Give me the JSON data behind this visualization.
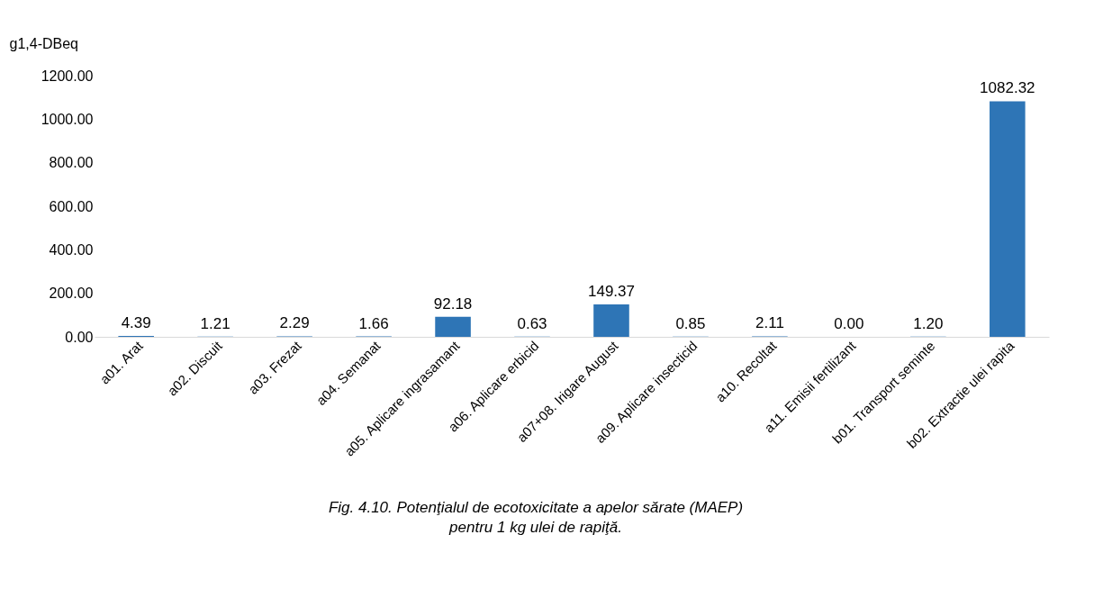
{
  "chart_data": {
    "type": "bar",
    "ylabel": "g1,4-DBeq",
    "categories": [
      "a01. Arat",
      "a02. Discuit",
      "a03. Frezat",
      "a04. Semanat",
      "a05. Aplicare ingrasamant",
      "a06. Aplicare erbicid",
      "a07+08. Irigare August",
      "a09. Aplicare insecticid",
      "a10. Recoltat",
      "a11. Emisii fertilizant",
      "b01. Transport seminte",
      "b02. Extractie ulei rapita"
    ],
    "values": [
      4.39,
      1.21,
      2.29,
      1.66,
      92.18,
      0.63,
      149.37,
      0.85,
      2.11,
      0.0,
      1.2,
      1082.32
    ],
    "color": "#2e75b6",
    "ylim": [
      0,
      1200
    ],
    "yticks": [
      {
        "value": 0,
        "label": "0.00"
      },
      {
        "value": 200,
        "label": "200.00"
      },
      {
        "value": 400,
        "label": "400.00"
      },
      {
        "value": 600,
        "label": "600.00"
      },
      {
        "value": 800,
        "label": "800.00"
      },
      {
        "value": 1000,
        "label": "1000.00"
      },
      {
        "value": 1200,
        "label": "1200.00"
      }
    ],
    "value_labels": [
      "4.39",
      "1.21",
      "2.29",
      "1.66",
      "92.18",
      "0.63",
      "149.37",
      "0.85",
      "2.11",
      "0.00",
      "1.20",
      "1082.32"
    ],
    "annotations": [
      "Fig. 4.10. Potenţialul de ecotoxicitate a apelor sărate (MAEP)",
      "pentru 1 kg ulei de rapiţă."
    ]
  }
}
